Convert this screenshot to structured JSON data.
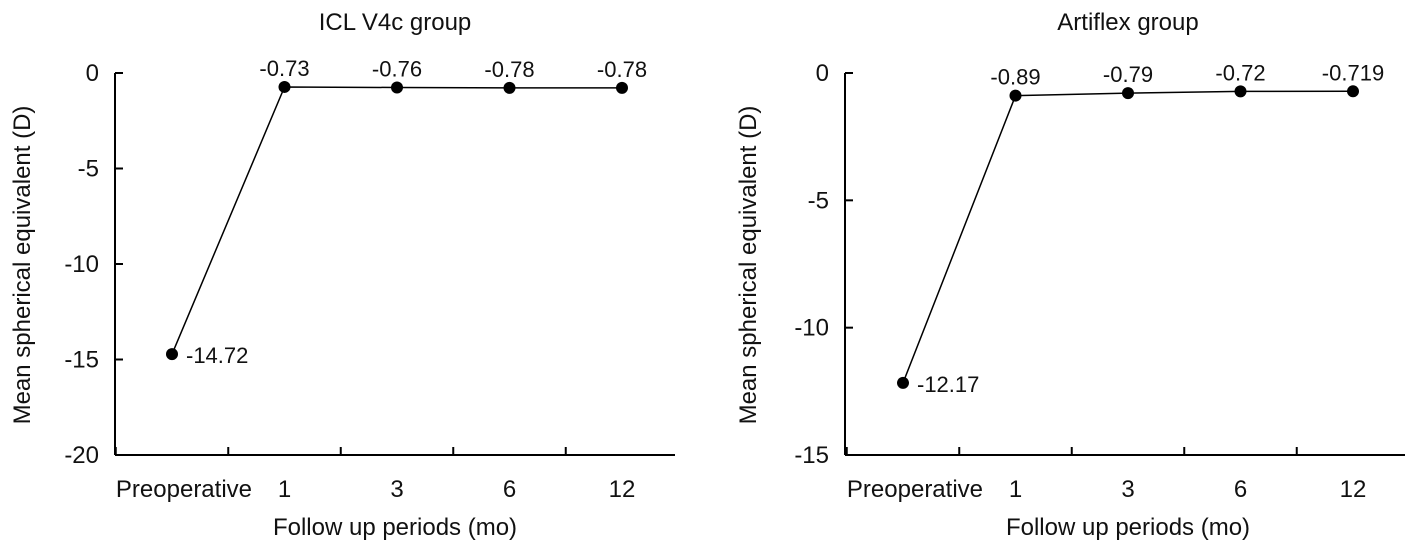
{
  "chart_data": [
    {
      "type": "line",
      "title": "ICL V4c group",
      "xlabel": "Follow up periods (mo)",
      "ylabel": "Mean spherical equivalent (D)",
      "categories": [
        "Preoperative",
        "1",
        "3",
        "6",
        "12"
      ],
      "values": [
        -14.72,
        -0.73,
        -0.76,
        -0.78,
        -0.78
      ],
      "value_labels": [
        "-14.72",
        "-0.73",
        "-0.76",
        "-0.78",
        "-0.78"
      ],
      "ylim": [
        -20,
        0
      ],
      "yticks": [
        0,
        -5,
        -10,
        -15,
        -20
      ],
      "ytick_labels": [
        "0",
        "-5",
        "-10",
        "-15",
        "-20"
      ],
      "grid": false,
      "legend": "none",
      "color": "#000000"
    },
    {
      "type": "line",
      "title": "Artiflex group",
      "xlabel": "Follow up periods (mo)",
      "ylabel": "Mean spherical equivalent (D)",
      "categories": [
        "Preoperative",
        "1",
        "3",
        "6",
        "12"
      ],
      "values": [
        -12.17,
        -0.89,
        -0.79,
        -0.72,
        -0.719
      ],
      "value_labels": [
        "-12.17",
        "-0.89",
        "-0.79",
        "-0.72",
        "-0.719"
      ],
      "ylim": [
        -15,
        0
      ],
      "yticks": [
        0,
        -5,
        -10,
        -15
      ],
      "ytick_labels": [
        "0",
        "-5",
        "-10",
        "-15"
      ],
      "grid": false,
      "legend": "none",
      "color": "#000000"
    }
  ]
}
